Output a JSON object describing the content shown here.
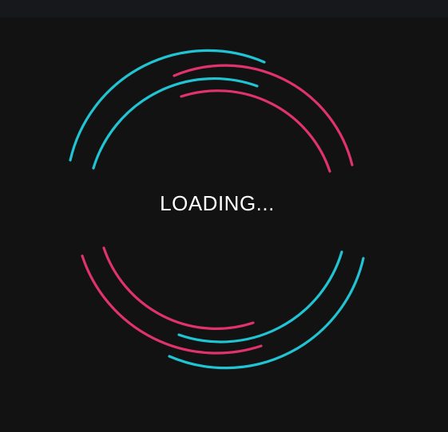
{
  "loader": {
    "text": "LOADING...",
    "colors": {
      "background": "#121212",
      "top_bar": "#16181c",
      "cyan": "#20c4d3",
      "pink": "#e0336b",
      "text": "#ffffff"
    }
  }
}
